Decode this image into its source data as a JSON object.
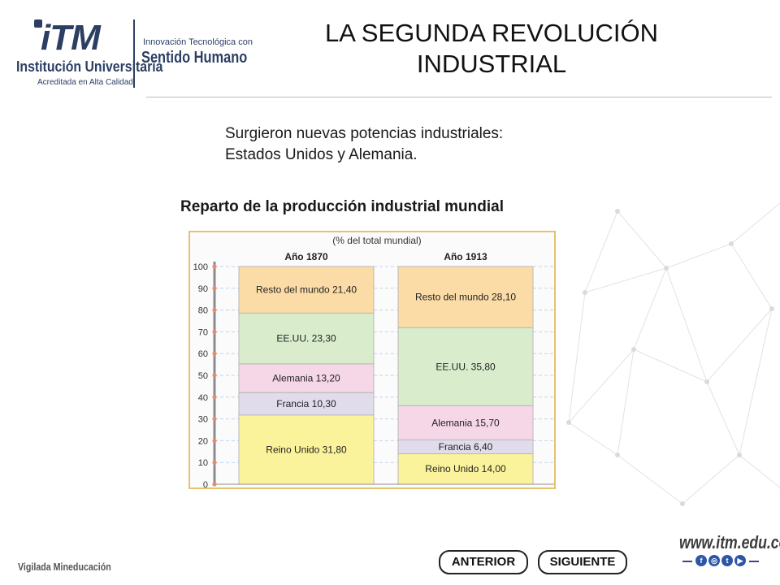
{
  "header": {
    "logo": {
      "brand": "iTM",
      "institution": "Institución Universitaria",
      "accreditation": "Acreditada en Alta Calidad",
      "tagline_top": "Innovación Tecnológica con",
      "tagline_bottom": "Sentido Humano"
    },
    "title_line1": "LA SEGUNDA REVOLUCIÓN",
    "title_line2": "INDUSTRIAL"
  },
  "content": {
    "text_line1": "Surgieron nuevas potencias industriales:",
    "text_line2": "Estados Unidos y Alemania.",
    "chart_heading": "Reparto de la producción industrial mundial"
  },
  "chart_data": {
    "type": "bar",
    "stacked": true,
    "subtitle": "(% del total mundial)",
    "categories": [
      "Año 1870",
      "Año 1913"
    ],
    "series": [
      {
        "name": "Reino Unido",
        "values": [
          31.8,
          14.0
        ],
        "labels": [
          "Reino Unido 31,80",
          "Reino Unido 14,00"
        ],
        "color": "#fbf39c"
      },
      {
        "name": "Francia",
        "values": [
          10.3,
          6.4
        ],
        "labels": [
          "Francia 10,30",
          "Francia 6,40"
        ],
        "color": "#e0dcec"
      },
      {
        "name": "Alemania",
        "values": [
          13.2,
          15.7
        ],
        "labels": [
          "Alemania 13,20",
          "Alemania 15,70"
        ],
        "color": "#f6d7e8"
      },
      {
        "name": "EE.UU.",
        "values": [
          23.3,
          35.8
        ],
        "labels": [
          "EE.UU. 23,30",
          "EE.UU. 35,80"
        ],
        "color": "#d9edcc"
      },
      {
        "name": "Resto del mundo",
        "values": [
          21.4,
          28.1
        ],
        "labels": [
          "Resto del mundo 21,40",
          "Resto del mundo 28,10"
        ],
        "color": "#fbdca7"
      }
    ],
    "yticks": [
      "0",
      "10",
      "20",
      "30",
      "40",
      "50",
      "60",
      "70",
      "80",
      "90",
      "100"
    ],
    "ylim": [
      0,
      100
    ],
    "grid": true,
    "axis_color": "#8c8c8c",
    "tick_marker_color": "#e98a6a"
  },
  "footer": {
    "vigilada": "Vigilada Mineducación",
    "prev_label": "ANTERIOR",
    "next_label": "SIGUIENTE",
    "website": "www.itm.edu.co",
    "social_icons": [
      "facebook-icon",
      "instagram-icon",
      "twitter-icon",
      "youtube-icon"
    ]
  }
}
